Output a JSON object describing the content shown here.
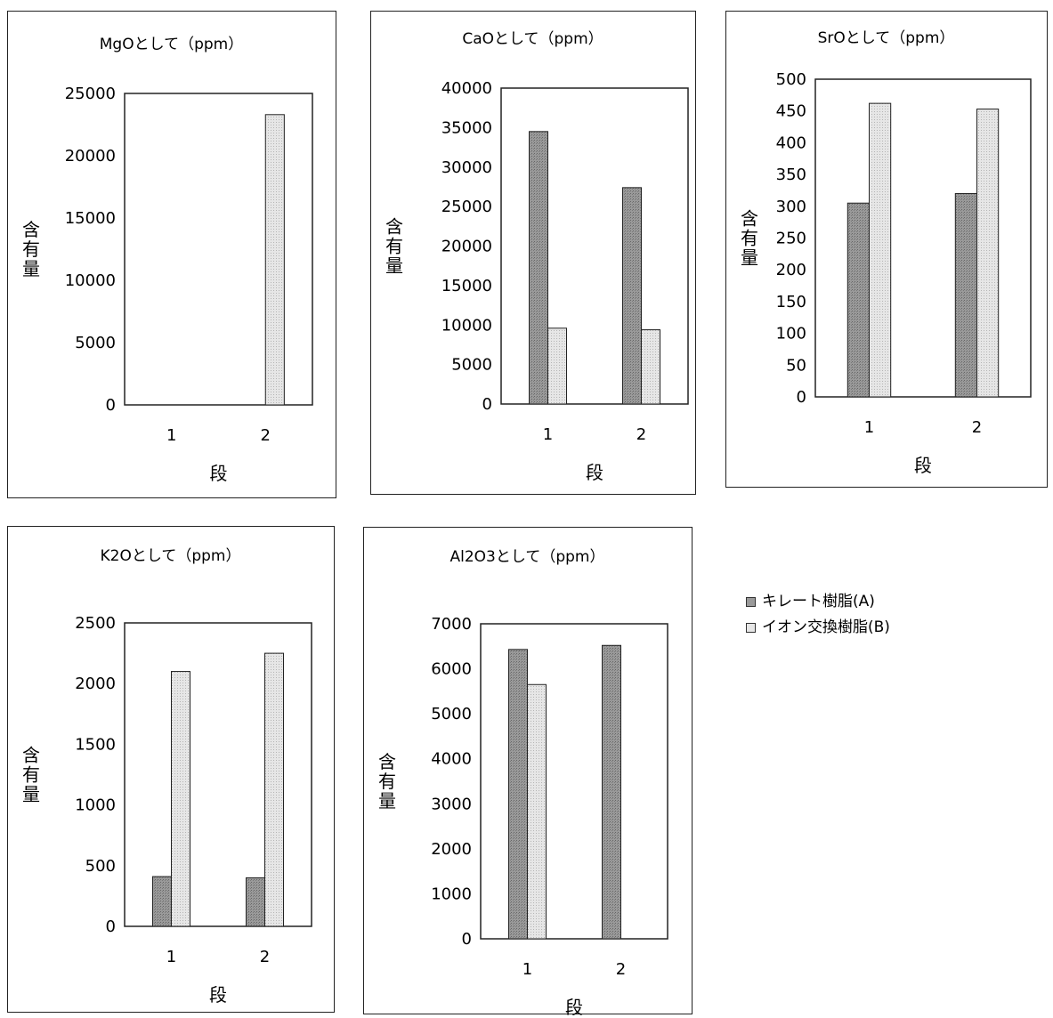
{
  "legend": {
    "items": [
      {
        "label": "キレート樹脂(A)",
        "color": "#9a9a9a"
      },
      {
        "label": "イオン交換樹脂(B)",
        "color": "#e6e6e6"
      }
    ]
  },
  "chart_data": [
    {
      "type": "bar",
      "title": "MgOとして（ppm）",
      "xlabel": "段",
      "ylabel": "含有量",
      "categories": [
        "1",
        "2"
      ],
      "ylim": [
        0,
        25000
      ],
      "yticks": [
        0,
        5000,
        10000,
        15000,
        20000,
        25000
      ],
      "series": [
        {
          "name": "キレート樹脂(A)",
          "values": [
            0,
            0
          ]
        },
        {
          "name": "イオン交換樹脂(B)",
          "values": [
            0,
            23300
          ]
        }
      ]
    },
    {
      "type": "bar",
      "title": "CaOとして（ppm）",
      "xlabel": "段",
      "ylabel": "含有量",
      "categories": [
        "1",
        "2"
      ],
      "ylim": [
        0,
        40000
      ],
      "yticks": [
        0,
        5000,
        10000,
        15000,
        20000,
        25000,
        30000,
        35000,
        40000
      ],
      "series": [
        {
          "name": "キレート樹脂(A)",
          "values": [
            34500,
            27400
          ]
        },
        {
          "name": "イオン交換樹脂(B)",
          "values": [
            9600,
            9400
          ]
        }
      ]
    },
    {
      "type": "bar",
      "title": "SrOとして（ppm）",
      "xlabel": "段",
      "ylabel": "含有量",
      "categories": [
        "1",
        "2"
      ],
      "ylim": [
        0,
        500
      ],
      "yticks": [
        0,
        50,
        100,
        150,
        200,
        250,
        300,
        350,
        400,
        450,
        500
      ],
      "series": [
        {
          "name": "キレート樹脂(A)",
          "values": [
            305,
            320
          ]
        },
        {
          "name": "イオン交換樹脂(B)",
          "values": [
            462,
            453
          ]
        }
      ]
    },
    {
      "type": "bar",
      "title": "K2Oとして（ppm）",
      "xlabel": "段",
      "ylabel": "含有量",
      "categories": [
        "1",
        "2"
      ],
      "ylim": [
        0,
        2500
      ],
      "yticks": [
        0,
        500,
        1000,
        1500,
        2000,
        2500
      ],
      "series": [
        {
          "name": "キレート樹脂(A)",
          "values": [
            410,
            400
          ]
        },
        {
          "name": "イオン交換樹脂(B)",
          "values": [
            2100,
            2250
          ]
        }
      ]
    },
    {
      "type": "bar",
      "title": "Al2O3として（ppm）",
      "xlabel": "段",
      "ylabel": "含有量",
      "categories": [
        "1",
        "2"
      ],
      "ylim": [
        0,
        7000
      ],
      "yticks": [
        0,
        1000,
        2000,
        3000,
        4000,
        5000,
        6000,
        7000
      ],
      "series": [
        {
          "name": "キレート樹脂(A)",
          "values": [
            6430,
            6520
          ]
        },
        {
          "name": "イオン交換樹脂(B)",
          "values": [
            5650,
            0
          ]
        }
      ]
    }
  ]
}
